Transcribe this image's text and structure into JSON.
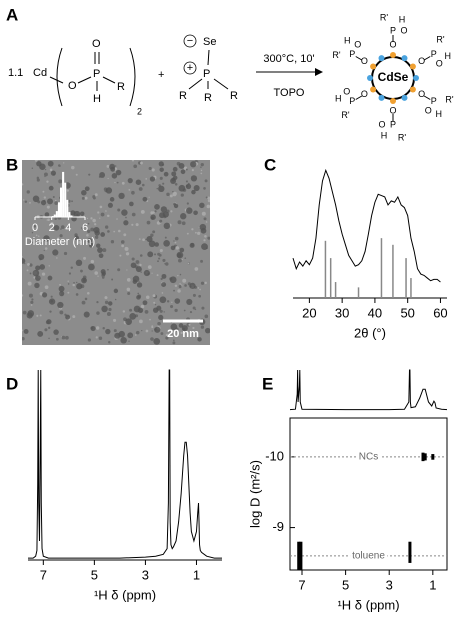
{
  "panel_labels": [
    "A",
    "B",
    "C",
    "D",
    "E"
  ],
  "scheme": {
    "coefficient": "1.1",
    "metal": "Cd",
    "reactant1": [
      "O",
      "P",
      "O",
      "H",
      "R",
      "2"
    ],
    "plus": "+",
    "charges": [
      "−",
      "+"
    ],
    "reactant2": [
      "Se",
      "P",
      "R",
      "R",
      "R"
    ],
    "conditions": "300°C, 10'",
    "solvent": "TOPO",
    "core": "CdSe",
    "ligand": [
      "O",
      "P",
      "O",
      "R'",
      "H"
    ]
  },
  "tem": {
    "scale_bar": "20 nm"
  },
  "chart_data": [
    {
      "type": "histogram",
      "bins": [
        2,
        2.25,
        2.5,
        2.75,
        3,
        3.25,
        3.5,
        3.75,
        4,
        4.25,
        4.5
      ],
      "values": [
        2,
        5,
        12,
        30,
        60,
        92,
        70,
        35,
        10,
        3
      ],
      "color": "#ffffff",
      "xlim": [
        0,
        6
      ],
      "xticks": [
        0,
        2,
        4,
        6
      ],
      "ylim": [
        0,
        100
      ],
      "xlabel": "Diameter (nm)"
    },
    {
      "type": "line",
      "panel": "C",
      "xlabel": "2θ (°)",
      "xlim": [
        15,
        62
      ],
      "xticks": [
        20,
        30,
        40,
        50,
        60
      ],
      "ylim": [
        0,
        100
      ],
      "color": "#000000",
      "x": [
        15,
        16,
        17,
        18,
        19,
        20,
        21,
        22,
        23,
        24,
        25,
        26,
        27,
        28,
        29,
        30,
        31,
        32,
        33,
        34,
        35,
        36,
        37,
        38,
        39,
        40,
        41,
        42,
        43,
        44,
        45,
        46,
        47,
        48,
        49,
        50,
        51,
        52,
        53,
        54,
        55,
        56,
        57,
        58,
        59,
        60
      ],
      "values": [
        30,
        22,
        27,
        24,
        28,
        25,
        30,
        45,
        70,
        88,
        96,
        90,
        80,
        70,
        58,
        48,
        40,
        32,
        28,
        24,
        25,
        28,
        35,
        48,
        62,
        72,
        78,
        77,
        76,
        70,
        73,
        72,
        76,
        70,
        68,
        62,
        45,
        35,
        22,
        18,
        17,
        15,
        13,
        14,
        14,
        12
      ],
      "reference": {
        "color": "#888888",
        "x": [
          24.9,
          26.5,
          28,
          35,
          42,
          45.5,
          49.5,
          51
        ],
        "values": [
          43,
          30,
          12,
          8,
          45,
          40,
          30,
          15
        ]
      }
    },
    {
      "type": "line",
      "panel": "D",
      "xlabel": "¹H δ (ppm)",
      "xlim": [
        7.6,
        0
      ],
      "xticks": [
        7,
        5,
        3,
        1
      ],
      "ylim": [
        0,
        100
      ],
      "color": "#000000",
      "x": [
        7.6,
        7.4,
        7.3,
        7.25,
        7.22,
        7.2,
        7.18,
        7.15,
        7.12,
        7.1,
        7.08,
        7.05,
        7,
        6.8,
        6,
        5,
        4,
        3,
        2.6,
        2.3,
        2.15,
        2.1,
        2.07,
        2.05,
        2.03,
        2,
        1.95,
        1.9,
        1.8,
        1.7,
        1.6,
        1.5,
        1.45,
        1.4,
        1.35,
        1.3,
        1.25,
        1.2,
        1.1,
        1,
        0.95,
        0.92,
        0.9,
        0.88,
        0.85,
        0.8,
        0.6,
        0.3,
        0
      ],
      "values": [
        1,
        1,
        2,
        5,
        40,
        100,
        30,
        10,
        60,
        100,
        30,
        6,
        2,
        1,
        1,
        1,
        1,
        1.5,
        2,
        3,
        6,
        30,
        100,
        100,
        20,
        8,
        6,
        7,
        10,
        20,
        35,
        55,
        62,
        62,
        55,
        40,
        25,
        15,
        10,
        15,
        25,
        30,
        20,
        8,
        5,
        4,
        2,
        1,
        1
      ]
    },
    {
      "type": "line",
      "xlim": [
        7.55,
        0.35
      ],
      "ylim": [
        0,
        100
      ],
      "color": "#000000",
      "x": [
        7.55,
        7.3,
        7.22,
        7.2,
        7.18,
        7.12,
        7.1,
        7.08,
        7,
        5,
        3,
        2.3,
        2.1,
        2.07,
        2.05,
        2.03,
        2,
        1.8,
        1.6,
        1.45,
        1.35,
        1.2,
        1.05,
        0.95,
        0.9,
        0.85,
        0.6,
        0.35
      ],
      "values": [
        1,
        2,
        40,
        100,
        20,
        60,
        100,
        20,
        2,
        1,
        1,
        2,
        20,
        100,
        100,
        20,
        6,
        8,
        30,
        52,
        52,
        20,
        10,
        22,
        18,
        5,
        2,
        1
      ]
    },
    {
      "type": "scatter",
      "panel": "E",
      "xlabel": "¹H δ (ppm)",
      "ylabel": "log D (m²/s)",
      "xlim": [
        7.55,
        0.35
      ],
      "xticks": [
        7,
        5,
        3,
        1
      ],
      "ylim": [
        -8.4,
        -10.55
      ],
      "yticks": [
        -10,
        -9
      ],
      "color": "#000000",
      "guides": [
        {
          "value": -10,
          "label": "NCs"
        },
        {
          "value": -8.6,
          "label": "toluene"
        }
      ],
      "x": [
        7.15,
        7.05,
        2.05,
        1.45,
        1.35,
        1.0
      ],
      "values": [
        -8.6,
        -8.6,
        -8.65,
        -10,
        -10,
        -10
      ],
      "spread": [
        0.2,
        0.2,
        0.15,
        0.06,
        0.05,
        0.04
      ]
    }
  ]
}
